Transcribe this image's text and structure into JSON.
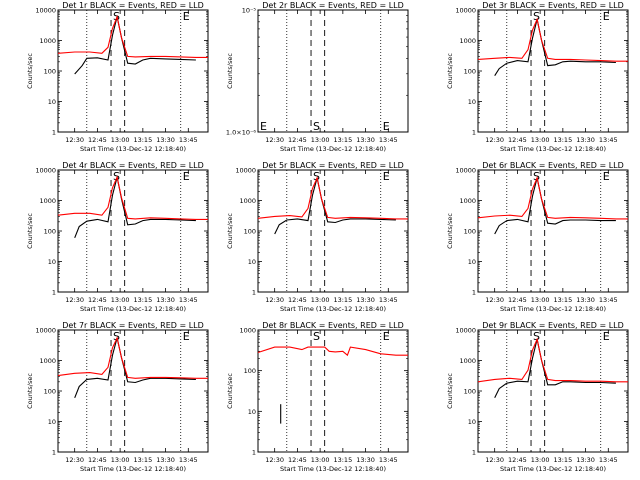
{
  "layout": "3x3 grid of detector count-rate plots",
  "common": {
    "xlabel": "Start Time (13-Dec-12 12:18:40)",
    "ylabel": "Counts/sec",
    "xticks": [
      "12:30",
      "12:45",
      "13:00",
      "13:15",
      "13:30",
      "13:45"
    ],
    "x_range": [
      "12:19",
      "13:58"
    ],
    "y_scale": "log",
    "markers": {
      "start": "S",
      "end": "E"
    },
    "marker_lines": {
      "dotted_x": [
        "12:38",
        "13:40"
      ],
      "dashed_x": [
        "12:54",
        "13:03"
      ]
    },
    "colors": {
      "events": "#000000",
      "lld": "#ff0000"
    }
  },
  "chart_data": [
    {
      "type": "line",
      "title": "Det 1r BLACK = Events, RED = LLD",
      "ylim": [
        1,
        10000
      ],
      "yticks": [
        "1",
        "10",
        "100",
        "1000",
        "10000"
      ],
      "has_data": true,
      "series": [
        {
          "name": "Events",
          "x": [
            "12:30",
            "12:35",
            "12:38",
            "12:45",
            "12:52",
            "12:55",
            "12:58",
            "13:01",
            "13:05",
            "13:10",
            "13:15",
            "13:20",
            "13:30",
            "13:40",
            "13:50"
          ],
          "y": [
            80,
            150,
            260,
            270,
            230,
            1500,
            6000,
            1200,
            180,
            170,
            230,
            260,
            250,
            240,
            230
          ]
        },
        {
          "name": "LLD",
          "x": [
            "12:19",
            "12:30",
            "12:40",
            "12:48",
            "12:52",
            "12:55",
            "12:58",
            "13:01",
            "13:05",
            "13:10",
            "13:20",
            "13:30",
            "13:40",
            "13:50",
            "13:58"
          ],
          "y": [
            380,
            420,
            420,
            380,
            600,
            2500,
            6000,
            1200,
            300,
            290,
            300,
            300,
            290,
            280,
            280
          ]
        }
      ]
    },
    {
      "type": "line",
      "title": "Det 2r BLACK = Events, RED = LLD",
      "ylim": [
        1e-06,
        1e-05
      ],
      "yticks": [
        "1.0×10⁻⁶",
        "10⁻⁵"
      ],
      "has_data": false,
      "series": []
    },
    {
      "type": "line",
      "title": "Det 3r BLACK = Events, RED = LLD",
      "ylim": [
        1,
        10000
      ],
      "yticks": [
        "1",
        "10",
        "100",
        "1000",
        "10000"
      ],
      "has_data": true,
      "series": [
        {
          "name": "Events",
          "x": [
            "12:30",
            "12:33",
            "12:38",
            "12:45",
            "12:52",
            "12:55",
            "12:58",
            "13:01",
            "13:05",
            "13:10",
            "13:15",
            "13:20",
            "13:30",
            "13:40",
            "13:50"
          ],
          "y": [
            70,
            120,
            180,
            220,
            200,
            1200,
            5000,
            1000,
            150,
            160,
            200,
            210,
            200,
            200,
            190
          ]
        },
        {
          "name": "LLD",
          "x": [
            "12:19",
            "12:30",
            "12:40",
            "12:48",
            "12:52",
            "12:55",
            "12:58",
            "13:01",
            "13:05",
            "13:10",
            "13:20",
            "13:30",
            "13:40",
            "13:50",
            "13:58"
          ],
          "y": [
            240,
            260,
            280,
            260,
            500,
            2200,
            5000,
            1000,
            260,
            240,
            240,
            230,
            220,
            210,
            210
          ]
        }
      ]
    },
    {
      "type": "line",
      "title": "Det 4r BLACK = Events, RED = LLD",
      "ylim": [
        1,
        10000
      ],
      "yticks": [
        "1",
        "10",
        "100",
        "1000",
        "10000"
      ],
      "has_data": true,
      "series": [
        {
          "name": "Events",
          "x": [
            "12:30",
            "12:33",
            "12:38",
            "12:45",
            "12:52",
            "12:55",
            "12:58",
            "13:01",
            "13:05",
            "13:10",
            "13:15",
            "13:20",
            "13:30",
            "13:40",
            "13:50"
          ],
          "y": [
            60,
            140,
            210,
            240,
            200,
            1500,
            5800,
            1100,
            160,
            170,
            220,
            240,
            240,
            230,
            220
          ]
        },
        {
          "name": "LLD",
          "x": [
            "12:19",
            "12:30",
            "12:40",
            "12:48",
            "12:52",
            "12:55",
            "12:58",
            "13:01",
            "13:05",
            "13:10",
            "13:20",
            "13:30",
            "13:40",
            "13:50",
            "13:58"
          ],
          "y": [
            330,
            380,
            380,
            330,
            600,
            2600,
            5800,
            1200,
            260,
            250,
            270,
            260,
            250,
            240,
            240
          ]
        }
      ]
    },
    {
      "type": "line",
      "title": "Det 5r BLACK = Events, RED = LLD",
      "ylim": [
        1,
        10000
      ],
      "yticks": [
        "1",
        "10",
        "100",
        "1000",
        "10000"
      ],
      "has_data": true,
      "series": [
        {
          "name": "Events",
          "x": [
            "12:30",
            "12:33",
            "12:38",
            "12:45",
            "12:52",
            "12:55",
            "12:58",
            "13:01",
            "13:05",
            "13:10",
            "13:15",
            "13:20",
            "13:30",
            "13:40",
            "13:50"
          ],
          "y": [
            80,
            160,
            230,
            250,
            220,
            1500,
            5500,
            1100,
            200,
            190,
            230,
            250,
            250,
            240,
            230
          ]
        },
        {
          "name": "LLD",
          "x": [
            "12:19",
            "12:30",
            "12:40",
            "12:48",
            "12:52",
            "12:55",
            "12:58",
            "13:01",
            "13:05",
            "13:10",
            "13:20",
            "13:30",
            "13:40",
            "13:50",
            "13:58"
          ],
          "y": [
            260,
            300,
            320,
            290,
            550,
            2500,
            5500,
            1100,
            280,
            260,
            280,
            270,
            260,
            250,
            250
          ]
        }
      ]
    },
    {
      "type": "line",
      "title": "Det 6r BLACK = Events, RED = LLD",
      "ylim": [
        1,
        10000
      ],
      "yticks": [
        "1",
        "10",
        "100",
        "1000",
        "10000"
      ],
      "has_data": true,
      "series": [
        {
          "name": "Events",
          "x": [
            "12:30",
            "12:33",
            "12:38",
            "12:45",
            "12:52",
            "12:55",
            "12:58",
            "13:01",
            "13:05",
            "13:10",
            "13:15",
            "13:20",
            "13:30",
            "13:40",
            "13:50"
          ],
          "y": [
            80,
            150,
            220,
            240,
            200,
            1400,
            5500,
            1100,
            180,
            170,
            220,
            230,
            230,
            220,
            220
          ]
        },
        {
          "name": "LLD",
          "x": [
            "12:19",
            "12:30",
            "12:40",
            "12:48",
            "12:52",
            "12:55",
            "12:58",
            "13:01",
            "13:05",
            "13:10",
            "13:20",
            "13:30",
            "13:40",
            "13:50",
            "13:58"
          ],
          "y": [
            270,
            310,
            330,
            300,
            550,
            2400,
            5500,
            1100,
            280,
            260,
            280,
            270,
            260,
            250,
            250
          ]
        }
      ]
    },
    {
      "type": "line",
      "title": "Det 7r BLACK = Events, RED = LLD",
      "ylim": [
        1,
        10000
      ],
      "yticks": [
        "1",
        "10",
        "100",
        "1000",
        "10000"
      ],
      "has_data": true,
      "series": [
        {
          "name": "Events",
          "x": [
            "12:30",
            "12:33",
            "12:38",
            "12:45",
            "12:52",
            "12:55",
            "12:58",
            "13:01",
            "13:05",
            "13:10",
            "13:15",
            "13:20",
            "13:30",
            "13:40",
            "13:50"
          ],
          "y": [
            60,
            140,
            240,
            260,
            230,
            1500,
            5500,
            1200,
            200,
            190,
            230,
            260,
            260,
            250,
            240
          ]
        },
        {
          "name": "LLD",
          "x": [
            "12:19",
            "12:30",
            "12:40",
            "12:48",
            "12:52",
            "12:55",
            "12:58",
            "13:01",
            "13:05",
            "13:10",
            "13:20",
            "13:30",
            "13:40",
            "13:50",
            "13:58"
          ],
          "y": [
            320,
            380,
            400,
            350,
            600,
            2600,
            5500,
            1200,
            280,
            260,
            280,
            280,
            270,
            260,
            260
          ]
        }
      ]
    },
    {
      "type": "line",
      "title": "Det 8r BLACK = Events, RED = LLD",
      "ylim": [
        1,
        1000
      ],
      "yticks": [
        "1",
        "10",
        "100",
        "1000"
      ],
      "has_data": true,
      "series": [
        {
          "name": "Events",
          "x": [
            "12:34",
            "12:34"
          ],
          "y": [
            5,
            15
          ]
        },
        {
          "name": "LLD",
          "x": [
            "12:19",
            "12:30",
            "12:40",
            "12:48",
            "12:52",
            "13:03",
            "13:06",
            "13:10",
            "13:15",
            "13:18",
            "13:20",
            "13:30",
            "13:40",
            "13:50",
            "13:58"
          ],
          "y": [
            280,
            380,
            380,
            330,
            380,
            380,
            300,
            290,
            300,
            240,
            380,
            330,
            260,
            240,
            240
          ]
        }
      ]
    },
    {
      "type": "line",
      "title": "Det 9r BLACK = Events, RED = LLD",
      "ylim": [
        1,
        10000
      ],
      "yticks": [
        "1",
        "10",
        "100",
        "1000",
        "10000"
      ],
      "has_data": true,
      "series": [
        {
          "name": "Events",
          "x": [
            "12:30",
            "12:33",
            "12:38",
            "12:45",
            "12:52",
            "12:55",
            "12:58",
            "13:01",
            "13:05",
            "13:10",
            "13:15",
            "13:20",
            "13:30",
            "13:40",
            "13:50"
          ],
          "y": [
            60,
            120,
            180,
            210,
            200,
            1200,
            5000,
            1000,
            160,
            160,
            200,
            200,
            190,
            190,
            180
          ]
        },
        {
          "name": "LLD",
          "x": [
            "12:19",
            "12:30",
            "12:40",
            "12:48",
            "12:52",
            "12:55",
            "12:58",
            "13:01",
            "13:05",
            "13:10",
            "13:20",
            "13:30",
            "13:40",
            "13:50",
            "13:58"
          ],
          "y": [
            200,
            240,
            260,
            240,
            480,
            2200,
            5000,
            1000,
            240,
            220,
            220,
            210,
            210,
            200,
            200
          ]
        }
      ]
    }
  ]
}
